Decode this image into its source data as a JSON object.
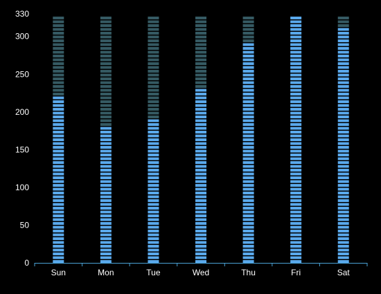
{
  "chart_data": {
    "type": "bar",
    "style": "segmented-progress-columns",
    "categories": [
      "Sun",
      "Mon",
      "Tue",
      "Wed",
      "Thu",
      "Fri",
      "Sat"
    ],
    "values": [
      220,
      183,
      190,
      233,
      291,
      330,
      310
    ],
    "max": 330,
    "ylim": [
      0,
      330
    ],
    "yticks": [
      0,
      50,
      100,
      150,
      200,
      250,
      300,
      330
    ],
    "grid": false,
    "legend": "none",
    "colors": {
      "background": "#000000",
      "filled": "#5aa9ec",
      "empty": "#355a63",
      "axis": "#4aa3d6",
      "text": "#ffffff"
    }
  }
}
